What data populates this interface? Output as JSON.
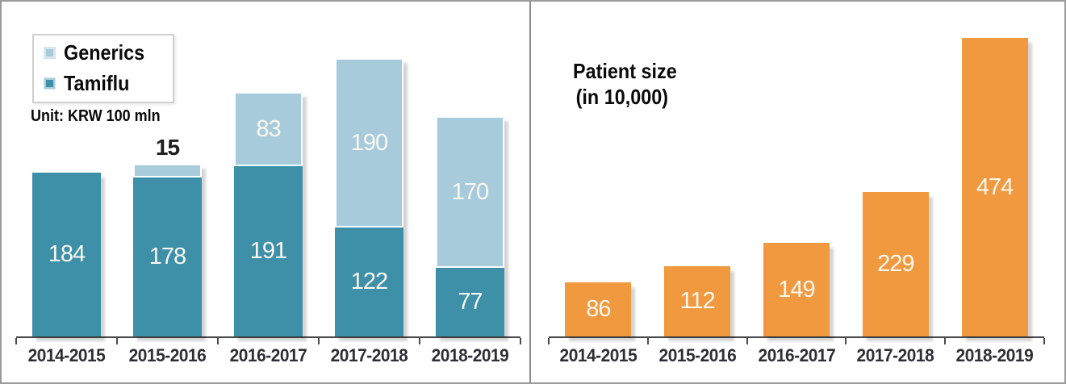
{
  "left_panel": {
    "legend": {
      "items": [
        {
          "label": "Generics"
        },
        {
          "label": "Tamiflu"
        }
      ]
    },
    "unit_label": "Unit: KRW 100 mln"
  },
  "right_panel": {
    "title_line1": "Patient size",
    "title_line2": "(in 10,000)"
  },
  "chart_data": [
    {
      "type": "bar",
      "stacked": true,
      "title": "",
      "unit": "KRW 100 mln",
      "categories": [
        "2014-2015",
        "2015-2016",
        "2016-2017",
        "2017-2018",
        "2018-2019"
      ],
      "series": [
        {
          "name": "Tamiflu",
          "color": "#3e8fa8",
          "values": [
            184,
            178,
            191,
            122,
            77
          ]
        },
        {
          "name": "Generics",
          "color": "#a8cbdc",
          "values": [
            0,
            15,
            83,
            190,
            170
          ]
        }
      ],
      "value_label_color": "#faf7f0",
      "outside_label": {
        "category": "2015-2016",
        "series": "Generics",
        "value": 15
      },
      "legend_position": "top-left",
      "xlabel": "",
      "ylabel": "",
      "ylim": [
        0,
        330
      ],
      "grid": false
    },
    {
      "type": "bar",
      "stacked": false,
      "title": "Patient size (in 10,000)",
      "categories": [
        "2014-2015",
        "2015-2016",
        "2016-2017",
        "2017-2018",
        "2018-2019"
      ],
      "series": [
        {
          "name": "Patient size",
          "color": "#f0993f",
          "values": [
            86,
            112,
            149,
            229,
            474
          ]
        }
      ],
      "value_label_color": "#faf7f0",
      "legend_position": "none",
      "xlabel": "",
      "ylabel": "",
      "ylim": [
        0,
        490
      ],
      "grid": false
    }
  ],
  "colors": {
    "tamiflu": "#3e8fa8",
    "generics": "#a8cbdc",
    "patient_bar": "#f0993f",
    "axis": "#4a4a4a",
    "xlabels": "#2e2e36",
    "outer_border": "#9b9b9b",
    "divider": "#8c8c8c"
  }
}
